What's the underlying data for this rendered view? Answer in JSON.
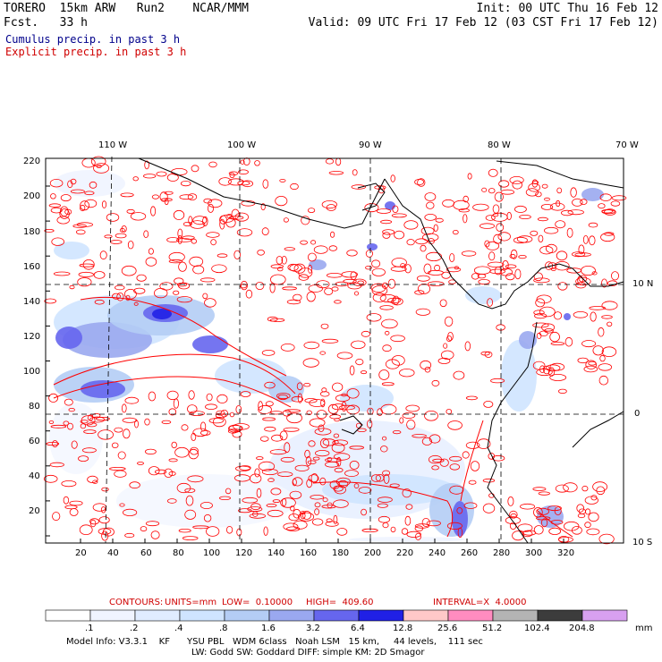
{
  "header": {
    "model": "TORERO  15km ARW   Run2    NCAR/MMM",
    "init": "Init: 00 UTC Thu 16 Feb 12",
    "fcst": "Fcst.   33 h",
    "valid": "Valid: 09 UTC Fri 17 Feb 12 (03 CST Fri 17 Feb 12)",
    "field1": "Cumulus precip. in past 3 h",
    "field2": "Explicit precip. in past 3 h",
    "field1_color": "#00008b",
    "field2_color": "#d00000"
  },
  "map": {
    "top_lon_labels": [
      "110 W",
      "100 W",
      "90 W",
      "80 W",
      "70 W"
    ],
    "right_lat_labels": [
      "10 N",
      "0",
      "10 S"
    ],
    "left_grid_labels": [
      "220",
      "200",
      "180",
      "160",
      "140",
      "120",
      "100",
      "80",
      "60",
      "40",
      "20"
    ],
    "bottom_grid_labels": [
      "20",
      "40",
      "60",
      "80",
      "100",
      "120",
      "140",
      "160",
      "180",
      "200",
      "220",
      "240",
      "260",
      "280",
      "300",
      "320"
    ]
  },
  "contours_line": {
    "contours": "CONTOURS:",
    "units": "UNITS=mm",
    "low": "LOW=  0.10000",
    "high": "HIGH=  409.60",
    "interval": "INTERVAL=X  4.0000"
  },
  "legend": {
    "levels": [
      ".1",
      ".2",
      ".4",
      ".8",
      "1.6",
      "3.2",
      "6.4",
      "12.8",
      "25.6",
      "51.2",
      "102.4",
      "204.8"
    ],
    "unit": "mm",
    "colors": [
      "#ffffff",
      "#f0f4ff",
      "#e0ecff",
      "#cfe4ff",
      "#b4cdf5",
      "#9aa8f0",
      "#6666ee",
      "#2020e6",
      "#ffc8c8",
      "#ff8cc0",
      "#b4b4b4",
      "#3c3c3c",
      "#d8a0f0"
    ]
  },
  "footer": {
    "line1": "Model Info: V3.3.1    KF      YSU PBL   WDM 6class   Noah LSM   15 km,     44 levels,    111 sec",
    "line2": "LW: Godd SW: Goddard DIFF: simple KM: 2D Smagor"
  }
}
